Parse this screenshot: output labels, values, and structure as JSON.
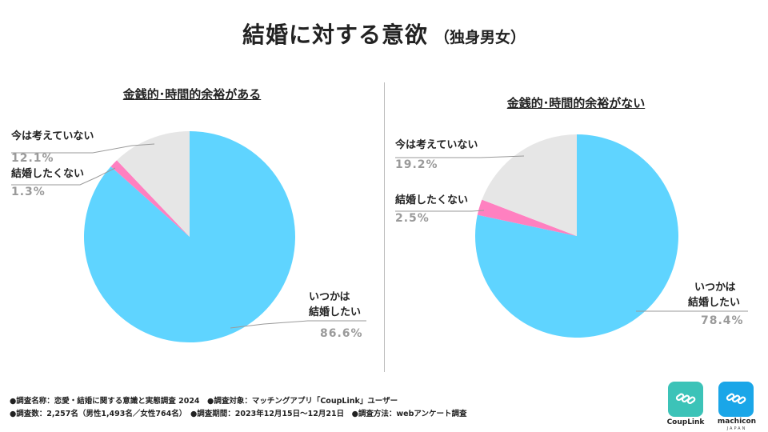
{
  "title": {
    "main": "結婚に対する意欲",
    "sub": "（独身男女）"
  },
  "chart_data": [
    {
      "type": "pie",
      "title": "金銭的･時間的余裕がある",
      "slices": [
        {
          "label_lines": [
            "いつかは",
            "結婚したい"
          ],
          "value": 86.6,
          "pct_text": "86.6%",
          "color": "#5fd4ff"
        },
        {
          "label_lines": [
            "結婚したくない"
          ],
          "value": 1.3,
          "pct_text": "1.3%",
          "color": "#ff80c0"
        },
        {
          "label_lines": [
            "今は考えていない"
          ],
          "value": 12.1,
          "pct_text": "12.1%",
          "color": "#e6e6e6"
        }
      ]
    },
    {
      "type": "pie",
      "title": "金銭的･時間的余裕がない",
      "slices": [
        {
          "label_lines": [
            "いつかは",
            "結婚したい"
          ],
          "value": 78.4,
          "pct_text": "78.4%",
          "color": "#5fd4ff"
        },
        {
          "label_lines": [
            "結婚したくない"
          ],
          "value": 2.5,
          "pct_text": "2.5%",
          "color": "#ff80c0"
        },
        {
          "label_lines": [
            "今は考えていない"
          ],
          "value": 19.2,
          "pct_text": "19.2%",
          "color": "#e6e6e6"
        }
      ]
    }
  ],
  "footer": {
    "line1": "●調査名称：恋愛・結婚に関する意識と実態調査 2024　●調査対象：マッチングアプリ「CoupLink」ユーザー",
    "line2": "●調査数：2,257名（男性1,493名／女性764名）　●調査期間：2023年12月15日～12月21日　●調査方法：webアンケート調査"
  },
  "logos": {
    "couplink": {
      "name": "CoupLink",
      "color": "#3cc3b8"
    },
    "machicon": {
      "name": "machicon",
      "sub": "JAPAN",
      "color": "#1aa6e8"
    }
  }
}
